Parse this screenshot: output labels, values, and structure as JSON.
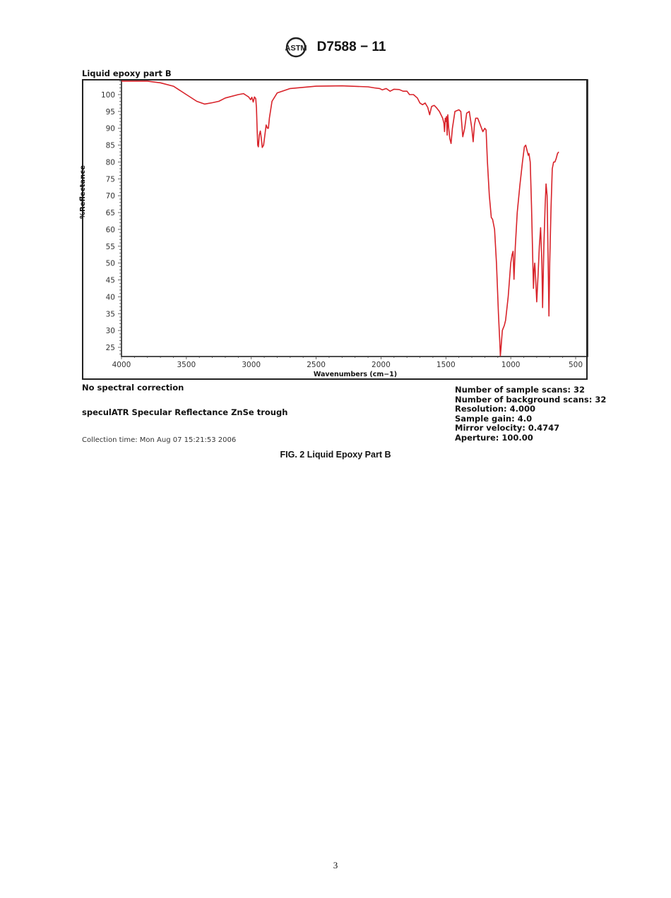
{
  "header": {
    "logo_icon": "astm-logo-icon",
    "doc_id": "D7588 − 11"
  },
  "figure": {
    "chart_title": "Liquid epoxy part B",
    "caption": "FIG. 2 Liquid Epoxy Part B",
    "notes": {
      "correction": "No spectral correction",
      "accessory": "speculATR Specular Reflectance ZnSe trough",
      "collection_time": "Collection time: Mon Aug 07 15:21:53 2006"
    },
    "params": [
      "Number of sample scans: 32",
      "Number of background scans: 32",
      "Resolution: 4.000",
      "Sample gain: 4.0",
      "Mirror velocity: 0.4747",
      "Aperture: 100.00"
    ]
  },
  "page_number": "3",
  "chart_data": {
    "type": "line",
    "title": "Liquid epoxy part B",
    "xlabel": "Wavenumbers (cm−1)",
    "ylabel": "%Reflectance",
    "xlim": [
      4000,
      400
    ],
    "ylim": [
      22,
      104.5
    ],
    "x_ticks": [
      4000,
      3500,
      3000,
      2500,
      2000,
      1500,
      1000,
      500
    ],
    "y_ticks": [
      25,
      30,
      35,
      40,
      45,
      50,
      55,
      60,
      65,
      70,
      75,
      80,
      85,
      90,
      95,
      100
    ],
    "grid": false,
    "line_color": "#d8232a",
    "series": [
      {
        "name": "Liquid epoxy part B",
        "points": [
          [
            4000,
            104
          ],
          [
            3800,
            104
          ],
          [
            3700,
            103.5
          ],
          [
            3600,
            102.5
          ],
          [
            3500,
            100
          ],
          [
            3420,
            98
          ],
          [
            3360,
            97.2
          ],
          [
            3300,
            97.6
          ],
          [
            3250,
            98
          ],
          [
            3200,
            99
          ],
          [
            3100,
            100
          ],
          [
            3060,
            100.3
          ],
          [
            3040,
            99.8
          ],
          [
            3020,
            99.3
          ],
          [
            3005,
            98.5
          ],
          [
            2995,
            99.2
          ],
          [
            2985,
            97.8
          ],
          [
            2975,
            99.3
          ],
          [
            2965,
            98.8
          ],
          [
            2960,
            96
          ],
          [
            2955,
            90
          ],
          [
            2950,
            85
          ],
          [
            2945,
            84.5
          ],
          [
            2938,
            88
          ],
          [
            2930,
            89.2
          ],
          [
            2922,
            87
          ],
          [
            2915,
            84.3
          ],
          [
            2905,
            85
          ],
          [
            2895,
            88
          ],
          [
            2885,
            91
          ],
          [
            2875,
            90
          ],
          [
            2868,
            90
          ],
          [
            2860,
            93
          ],
          [
            2840,
            98
          ],
          [
            2800,
            100.5
          ],
          [
            2700,
            101.8
          ],
          [
            2500,
            102.5
          ],
          [
            2300,
            102.6
          ],
          [
            2100,
            102.3
          ],
          [
            2050,
            102
          ],
          [
            2010,
            101.8
          ],
          [
            1990,
            101.4
          ],
          [
            1960,
            101.8
          ],
          [
            1930,
            101
          ],
          [
            1900,
            101.6
          ],
          [
            1860,
            101.5
          ],
          [
            1830,
            101
          ],
          [
            1800,
            101
          ],
          [
            1780,
            100
          ],
          [
            1750,
            100
          ],
          [
            1720,
            99
          ],
          [
            1700,
            97.5
          ],
          [
            1680,
            97
          ],
          [
            1660,
            97.5
          ],
          [
            1640,
            96.2
          ],
          [
            1625,
            94
          ],
          [
            1610,
            96.5
          ],
          [
            1590,
            96.8
          ],
          [
            1570,
            96
          ],
          [
            1550,
            95
          ],
          [
            1525,
            93
          ],
          [
            1515,
            91.5
          ],
          [
            1510,
            89
          ],
          [
            1505,
            93
          ],
          [
            1500,
            92
          ],
          [
            1495,
            93.5
          ],
          [
            1490,
            88
          ],
          [
            1485,
            94
          ],
          [
            1478,
            90
          ],
          [
            1470,
            87
          ],
          [
            1460,
            85.5
          ],
          [
            1450,
            90
          ],
          [
            1430,
            95
          ],
          [
            1400,
            95.5
          ],
          [
            1385,
            95
          ],
          [
            1370,
            87.5
          ],
          [
            1355,
            90
          ],
          [
            1340,
            94.5
          ],
          [
            1320,
            95
          ],
          [
            1300,
            90
          ],
          [
            1290,
            86
          ],
          [
            1280,
            91
          ],
          [
            1270,
            93
          ],
          [
            1255,
            93
          ],
          [
            1240,
            91.5
          ],
          [
            1225,
            90
          ],
          [
            1215,
            89
          ],
          [
            1200,
            90
          ],
          [
            1190,
            89.5
          ],
          [
            1180,
            80
          ],
          [
            1165,
            70
          ],
          [
            1150,
            63.5
          ],
          [
            1140,
            63
          ],
          [
            1125,
            60
          ],
          [
            1110,
            50
          ],
          [
            1095,
            35
          ],
          [
            1085,
            27
          ],
          [
            1080,
            22.5
          ],
          [
            1075,
            25
          ],
          [
            1065,
            30
          ],
          [
            1050,
            31.5
          ],
          [
            1040,
            33
          ],
          [
            1020,
            40
          ],
          [
            1000,
            50
          ],
          [
            990,
            52.5
          ],
          [
            982,
            53.5
          ],
          [
            975,
            45.2
          ],
          [
            965,
            55
          ],
          [
            950,
            65
          ],
          [
            930,
            73
          ],
          [
            910,
            80
          ],
          [
            895,
            84.5
          ],
          [
            885,
            85
          ],
          [
            875,
            83.5
          ],
          [
            865,
            82
          ],
          [
            860,
            82.5
          ],
          [
            850,
            80
          ],
          [
            840,
            67
          ],
          [
            830,
            50
          ],
          [
            825,
            42.5
          ],
          [
            820,
            48
          ],
          [
            815,
            50
          ],
          [
            810,
            47
          ],
          [
            800,
            38.5
          ],
          [
            790,
            46
          ],
          [
            780,
            55
          ],
          [
            770,
            60.5
          ],
          [
            760,
            50
          ],
          [
            755,
            36.8
          ],
          [
            745,
            55
          ],
          [
            735,
            67
          ],
          [
            728,
            73.5
          ],
          [
            720,
            70
          ],
          [
            712,
            50
          ],
          [
            706,
            34.3
          ],
          [
            700,
            50
          ],
          [
            690,
            66
          ],
          [
            680,
            78
          ],
          [
            670,
            80
          ],
          [
            660,
            80
          ],
          [
            650,
            81
          ],
          [
            640,
            82.5
          ],
          [
            630,
            83
          ]
        ]
      }
    ]
  }
}
